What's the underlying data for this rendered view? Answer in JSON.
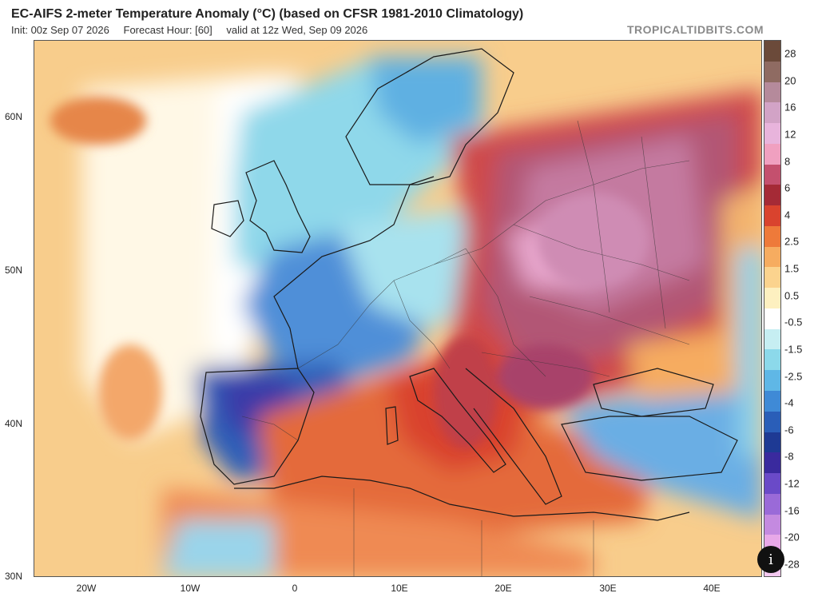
{
  "header": {
    "title": "EC-AIFS 2-meter Temperature Anomaly (°C) (based on CFSR 1981-2010 Climatology)",
    "init": "Init: 00z Sep 07 2026",
    "forecast_hour": "Forecast Hour: [60]",
    "valid": "valid at 12z Wed, Sep 09 2026",
    "brand": "TROPICALTIDBITS.COM"
  },
  "axes": {
    "latitudes": [
      "60N",
      "50N",
      "40N",
      "30N"
    ],
    "longitudes": [
      "20W",
      "10W",
      "0",
      "10E",
      "20E",
      "30E",
      "40E"
    ]
  },
  "colorbar": {
    "labels": [
      "28",
      "20",
      "16",
      "12",
      "8",
      "6",
      "4",
      "2.5",
      "1.5",
      "0.5",
      "-0.5",
      "-1.5",
      "-2.5",
      "-4",
      "-6",
      "-8",
      "-12",
      "-16",
      "-20",
      "-28"
    ],
    "colors": [
      "#6b4a3a",
      "#8f6b62",
      "#b58a9b",
      "#d2a3c6",
      "#e8b4dc",
      "#f0a0c0",
      "#c4506e",
      "#a52a36",
      "#d9432e",
      "#ee7a3a",
      "#f6ac60",
      "#fbd38e",
      "#fdf0c0",
      "#ffffff",
      "#c6eef2",
      "#8cd9ea",
      "#5fb7e6",
      "#3f8ad6",
      "#2a5eb8",
      "#1e3a94",
      "#3a2a9e",
      "#6a4ac8",
      "#9a6ad8",
      "#c48ae0",
      "#e8a8e8",
      "#f4c8f0"
    ]
  },
  "info_button": {
    "label": "i"
  }
}
